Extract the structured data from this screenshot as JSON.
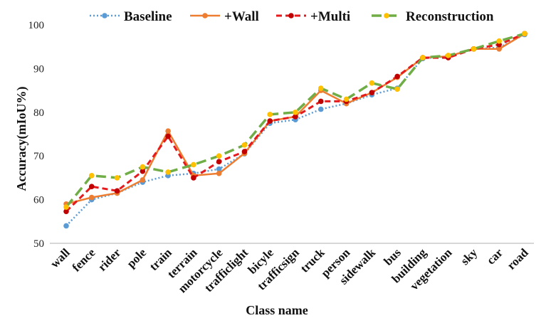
{
  "chart_data": {
    "type": "line",
    "xlabel": "Class name",
    "ylabel": "Accuracy(mIoU%)",
    "ylim": [
      50,
      100
    ],
    "yticks": [
      50,
      60,
      70,
      80,
      90,
      100
    ],
    "grid": "none",
    "legend_position": "top",
    "categories": [
      "wall",
      "fence",
      "rider",
      "pole",
      "train",
      "terrain",
      "motorcycle",
      "trafficlight",
      "bicyle",
      "trafficsign",
      "truck",
      "person",
      "sidewalk",
      "bus",
      "building",
      "vegetation",
      "sky",
      "car",
      "road"
    ],
    "series": [
      {
        "name": "Baseline",
        "color": "#5b9bd5",
        "line_style": "dotted",
        "marker_color": "#5b9bd5",
        "values": [
          54.0,
          60.0,
          61.5,
          64.0,
          65.5,
          66.0,
          67.0,
          70.5,
          77.5,
          78.3,
          80.7,
          82.0,
          84.0,
          85.5,
          92.3,
          92.8,
          94.5,
          94.8,
          97.8
        ]
      },
      {
        "name": "+Wall",
        "color": "#ed7d31",
        "line_style": "solid",
        "marker_color": "#ed7d31",
        "values": [
          59.0,
          60.5,
          61.5,
          64.5,
          75.7,
          65.5,
          66.0,
          70.6,
          78.0,
          79.0,
          85.0,
          82.0,
          84.5,
          88.0,
          92.5,
          92.8,
          94.5,
          94.5,
          98.0
        ]
      },
      {
        "name": "+Multi",
        "color": "#e41a1c",
        "line_style": "dashed",
        "marker_color": "#c00000",
        "values": [
          57.3,
          63.0,
          62.0,
          66.5,
          74.5,
          65.0,
          68.7,
          71.0,
          78.0,
          79.0,
          82.5,
          82.5,
          84.5,
          88.2,
          92.5,
          92.5,
          94.5,
          95.5,
          98.0
        ]
      },
      {
        "name": "Reconstruction",
        "color": "#70ad47",
        "line_style": "longdash",
        "marker_color": "#ffc000",
        "values": [
          58.3,
          65.5,
          65.0,
          67.5,
          66.3,
          68.0,
          70.0,
          72.5,
          79.5,
          80.0,
          85.5,
          83.0,
          86.7,
          85.3,
          92.5,
          93.0,
          94.5,
          96.3,
          98.0
        ]
      }
    ]
  }
}
